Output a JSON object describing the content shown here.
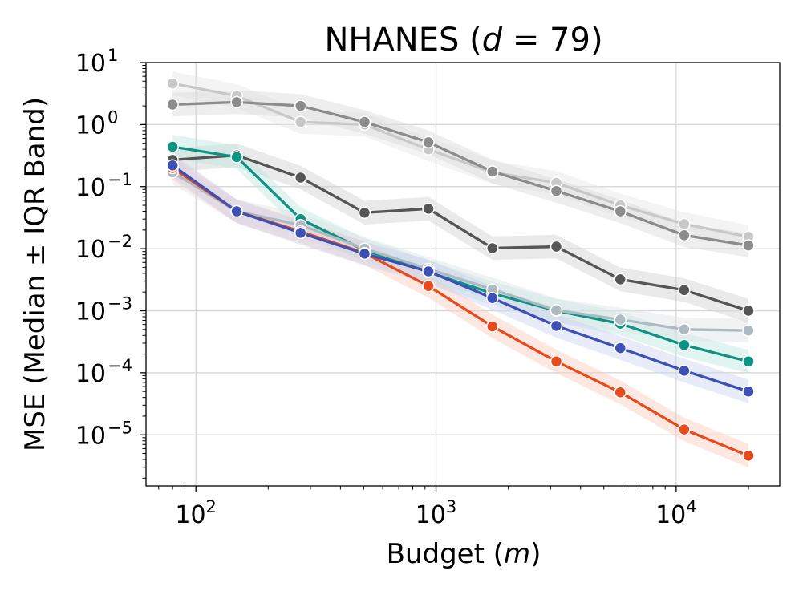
{
  "chart_data": {
    "type": "line",
    "title_text": "NHANES (",
    "title_var": "d",
    "title_eq": " = 79)",
    "xlabel_text": "Budget (",
    "xlabel_var": "m",
    "xlabel_close": ")",
    "ylabel": "MSE (Median ± IQR Band)",
    "xscale": "log",
    "yscale": "log",
    "xlim": [
      62,
      27000
    ],
    "ylim": [
      1.5e-06,
      10
    ],
    "grid": true,
    "x_ticks": [
      {
        "value": 100,
        "base": "10",
        "exp": "2"
      },
      {
        "value": 1000,
        "base": "10",
        "exp": "3"
      },
      {
        "value": 10000,
        "base": "10",
        "exp": "4"
      }
    ],
    "y_ticks": [
      {
        "value": 10,
        "base": "10",
        "exp": "1"
      },
      {
        "value": 1,
        "base": "10",
        "exp": "0"
      },
      {
        "value": 0.1,
        "base": "10",
        "exp": "−1"
      },
      {
        "value": 0.01,
        "base": "10",
        "exp": "−2"
      },
      {
        "value": 0.001,
        "base": "10",
        "exp": "−3"
      },
      {
        "value": 0.0001,
        "base": "10",
        "exp": "−4"
      },
      {
        "value": 1e-05,
        "base": "10",
        "exp": "−5"
      }
    ],
    "x": [
      80,
      148,
      273,
      504,
      930,
      1717,
      3170,
      5852,
      10800,
      20000
    ],
    "series": [
      {
        "name": "light gray",
        "color": "#c8c8c8",
        "band_color": "#e6e6e6",
        "values": [
          4.6,
          2.9,
          1.1,
          1.0,
          0.4,
          0.17,
          0.115,
          0.05,
          0.025,
          0.0155
        ]
      },
      {
        "name": "gray",
        "color": "#8c8c8c",
        "band_color": "#d9d9d9",
        "values": [
          2.1,
          2.3,
          2.0,
          1.1,
          0.52,
          0.175,
          0.085,
          0.04,
          0.0165,
          0.0113
        ]
      },
      {
        "name": "dark gray",
        "color": "#555555",
        "band_color": "#d0d0d0",
        "values": [
          0.27,
          0.32,
          0.14,
          0.038,
          0.044,
          0.0102,
          0.0108,
          0.0032,
          0.00215,
          0.001
        ]
      },
      {
        "name": "teal",
        "color": "#0b9482",
        "band_color": "#bde6e0",
        "values": [
          0.44,
          0.3,
          0.03,
          0.0095,
          0.0042,
          0.0019,
          0.001,
          0.00062,
          0.00028,
          0.000152
        ]
      },
      {
        "name": "slate",
        "color": "#aebac2",
        "band_color": "#dde3e7",
        "values": [
          0.17,
          0.04,
          0.024,
          0.01,
          0.0047,
          0.0022,
          0.00102,
          0.00072,
          0.0005,
          0.00048
        ]
      },
      {
        "name": "orange",
        "color": "#e84a1c",
        "band_color": "#f8cbbd",
        "values": [
          0.2,
          0.04,
          0.019,
          0.0085,
          0.0025,
          0.00056,
          0.000152,
          4.85e-05,
          1.22e-05,
          4.6e-06
        ]
      },
      {
        "name": "blue",
        "color": "#3e4fb5",
        "band_color": "#cdd2f0",
        "values": [
          0.22,
          0.04,
          0.018,
          0.0083,
          0.0043,
          0.0016,
          0.00057,
          0.00025,
          0.000108,
          5e-05
        ]
      }
    ]
  }
}
